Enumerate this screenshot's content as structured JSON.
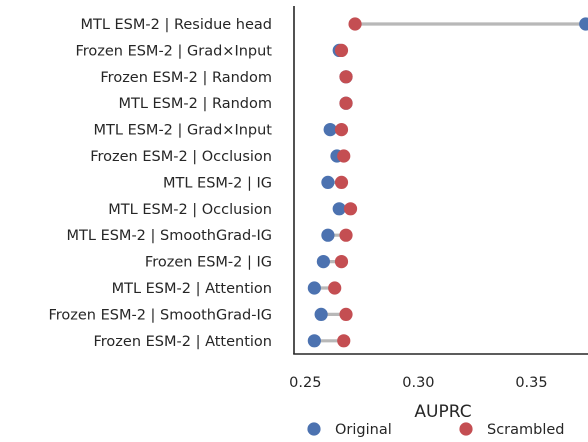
{
  "chart_data": {
    "type": "dumbbell",
    "xlabel": "AUPRC",
    "xticks": [
      0.25,
      0.3,
      0.35
    ],
    "xlim": [
      0.245,
      0.375
    ],
    "grid": false,
    "legend_position": "bottom",
    "categories": [
      "MTL ESM-2 | Residue head",
      "Frozen ESM-2 | Grad×Input",
      "Frozen ESM-2 | Random",
      "MTL ESM-2 | Random",
      "MTL ESM-2 | Grad×Input",
      "Frozen ESM-2 | Occlusion",
      "MTL ESM-2 | IG",
      "MTL ESM-2 | Occlusion",
      "MTL ESM-2 | SmoothGrad-IG",
      "Frozen ESM-2 | IG",
      "MTL ESM-2 | Attention",
      "Frozen ESM-2 | SmoothGrad-IG",
      "Frozen ESM-2 | Attention"
    ],
    "series": [
      {
        "name": "Original",
        "color": "#4c72b0",
        "values": [
          0.374,
          0.265,
          0.268,
          0.268,
          0.261,
          0.264,
          0.26,
          0.265,
          0.26,
          0.258,
          0.254,
          0.257,
          0.254
        ]
      },
      {
        "name": "Scrambled",
        "color": "#c44e52",
        "values": [
          0.272,
          0.266,
          0.268,
          0.268,
          0.266,
          0.267,
          0.266,
          0.27,
          0.268,
          0.266,
          0.263,
          0.268,
          0.267
        ]
      }
    ],
    "connector_color": "#b8b8b8"
  }
}
